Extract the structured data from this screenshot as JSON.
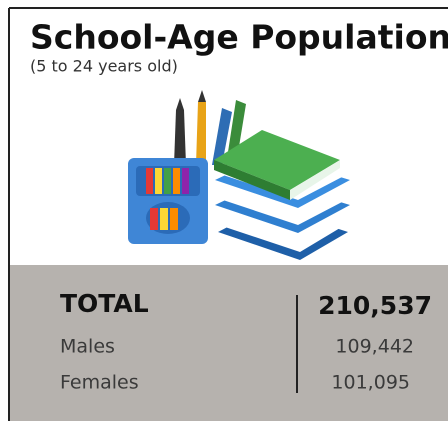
{
  "header": {
    "title": "School-Age Population",
    "subtitle": "(5 to 24 years old)"
  },
  "table": {
    "rows": [
      [
        "TOTAL",
        "210,537"
      ],
      [
        "Males",
        "109,442"
      ],
      [
        "Females",
        "101,095"
      ]
    ]
  }
}
